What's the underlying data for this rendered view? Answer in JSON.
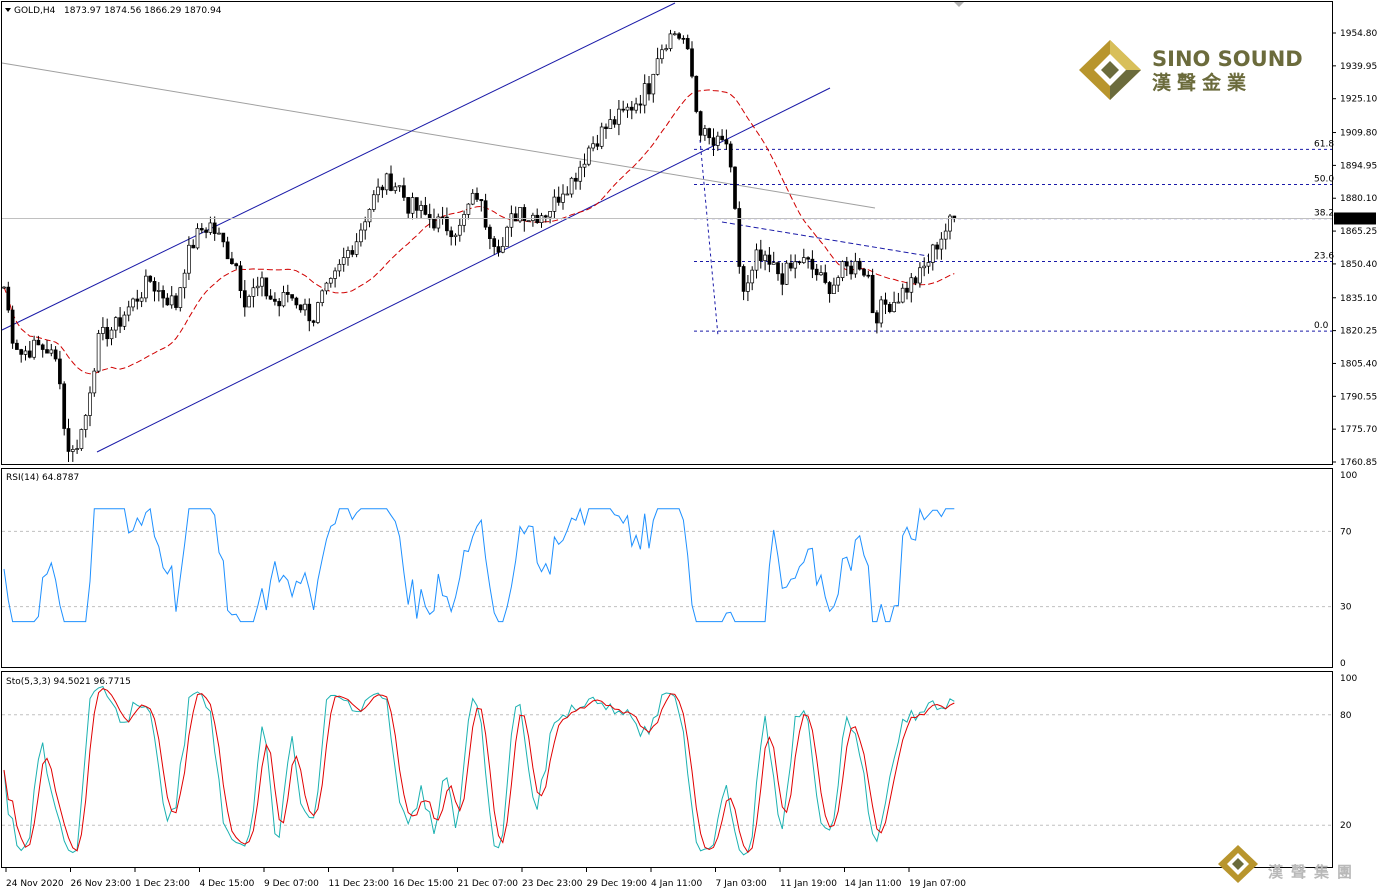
{
  "chart_data": {
    "type": "candlestick",
    "symbol": "GOLD,H4",
    "ohlc_readout": "1873.97 1874.56 1866.29 1870.94",
    "price_axis": {
      "ticks": [
        1954.8,
        1939.95,
        1925.1,
        1909.8,
        1894.95,
        1880.1,
        1865.25,
        1850.4,
        1835.1,
        1820.25,
        1805.4,
        1790.55,
        1775.7,
        1760.85
      ],
      "tick_labels": [
        "1954.80",
        "1939.95",
        "1925.10",
        "1909.80",
        "1894.95",
        "1880.10",
        "1865.25",
        "1850.40",
        "1835.10",
        "1820.25",
        "1805.40",
        "1790.55",
        "1775.70",
        "1760.85"
      ],
      "range": [
        1760.0,
        1962.0
      ]
    },
    "current_price": {
      "value": 1870.94,
      "label": "1870.94"
    },
    "time_labels": [
      "24 Nov 2020",
      "26 Nov 23:00",
      "1 Dec 23:00",
      "4 Dec 15:00",
      "9 Dec 07:00",
      "11 Dec 23:00",
      "16 Dec 15:00",
      "21 Dec 07:00",
      "23 Dec 23:00",
      "29 Dec 19:00",
      "4 Jan 11:00",
      "7 Jan 03:00",
      "11 Jan 19:00",
      "14 Jan 11:00",
      "19 Jan 07:00"
    ],
    "fibonacci": [
      {
        "label": "61.8",
        "price": 1902.2
      },
      {
        "label": "50.0",
        "price": 1886.3
      },
      {
        "label": "38.2",
        "price": 1870.9
      },
      {
        "label": "23.6",
        "price": 1851.5
      },
      {
        "label": "0.0",
        "price": 1820.0
      }
    ],
    "bar_count": 236,
    "key_points": [
      [
        0,
        1840
      ],
      [
        4,
        1818
      ],
      [
        8,
        1810
      ],
      [
        12,
        1812
      ],
      [
        16,
        1813
      ],
      [
        20,
        1812
      ],
      [
        24,
        1806
      ],
      [
        26,
        1800
      ],
      [
        28,
        1776
      ],
      [
        30,
        1768
      ],
      [
        32,
        1765
      ],
      [
        34,
        1770
      ],
      [
        36,
        1775
      ],
      [
        38,
        1782
      ],
      [
        40,
        1795
      ],
      [
        42,
        1806
      ],
      [
        44,
        1815
      ],
      [
        48,
        1820
      ],
      [
        52,
        1822
      ],
      [
        56,
        1828
      ],
      [
        60,
        1833
      ],
      [
        64,
        1838
      ],
      [
        68,
        1843
      ],
      [
        72,
        1838
      ],
      [
        76,
        1835
      ],
      [
        80,
        1832
      ],
      [
        84,
        1850
      ],
      [
        88,
        1860
      ],
      [
        92,
        1866
      ],
      [
        96,
        1868
      ],
      [
        100,
        1862
      ],
      [
        104,
        1856
      ],
      [
        108,
        1850
      ],
      [
        110,
        1842
      ],
      [
        112,
        1835
      ],
      [
        116,
        1838
      ],
      [
        120,
        1840
      ],
      [
        124,
        1835
      ],
      [
        128,
        1832
      ],
      [
        132,
        1837
      ],
      [
        136,
        1834
      ],
      [
        140,
        1830
      ],
      [
        144,
        1826
      ],
      [
        148,
        1835
      ],
      [
        152,
        1840
      ],
      [
        156,
        1848
      ],
      [
        160,
        1856
      ],
      [
        164,
        1862
      ],
      [
        168,
        1872
      ],
      [
        172,
        1880
      ],
      [
        176,
        1886
      ],
      [
        180,
        1888
      ],
      [
        184,
        1885
      ],
      [
        188,
        1877
      ],
      [
        192,
        1875
      ],
      [
        196,
        1872
      ],
      [
        200,
        1870
      ],
      [
        204,
        1868
      ],
      [
        208,
        1867
      ],
      [
        212,
        1866
      ],
      [
        216,
        1876
      ],
      [
        220,
        1882
      ],
      [
        224,
        1870
      ],
      [
        228,
        1862
      ],
      [
        232,
        1858
      ],
      [
        236,
        1870
      ],
      [
        240,
        1876
      ],
      [
        244,
        1872
      ],
      [
        248,
        1873
      ],
      [
        252,
        1874
      ],
      [
        256,
        1878
      ],
      [
        260,
        1885
      ],
      [
        264,
        1888
      ],
      [
        268,
        1895
      ],
      [
        272,
        1903
      ],
      [
        276,
        1908
      ],
      [
        280,
        1912
      ],
      [
        284,
        1915
      ],
      [
        288,
        1918
      ],
      [
        292,
        1922
      ],
      [
        296,
        1926
      ],
      [
        300,
        1931
      ],
      [
        302,
        1940
      ],
      [
        304,
        1946
      ],
      [
        308,
        1952
      ],
      [
        312,
        1955
      ],
      [
        316,
        1952
      ],
      [
        318,
        1944
      ],
      [
        320,
        1935
      ],
      [
        322,
        1920
      ],
      [
        324,
        1912
      ],
      [
        326,
        1908
      ],
      [
        328,
        1906
      ],
      [
        330,
        1904
      ],
      [
        334,
        1905
      ],
      [
        336,
        1905
      ],
      [
        338,
        1890
      ],
      [
        340,
        1872
      ],
      [
        342,
        1850
      ],
      [
        344,
        1838
      ],
      [
        346,
        1840
      ],
      [
        348,
        1845
      ],
      [
        350,
        1853
      ],
      [
        354,
        1850
      ],
      [
        358,
        1848
      ],
      [
        362,
        1845
      ],
      [
        366,
        1848
      ],
      [
        370,
        1852
      ],
      [
        374,
        1850
      ],
      [
        378,
        1846
      ],
      [
        382,
        1840
      ],
      [
        386,
        1842
      ],
      [
        390,
        1847
      ],
      [
        394,
        1849
      ],
      [
        398,
        1851
      ],
      [
        402,
        1845
      ],
      [
        404,
        1830
      ],
      [
        406,
        1828
      ],
      [
        410,
        1832
      ],
      [
        414,
        1834
      ],
      [
        418,
        1838
      ],
      [
        422,
        1842
      ],
      [
        426,
        1845
      ],
      [
        430,
        1852
      ],
      [
        434,
        1860
      ],
      [
        438,
        1866
      ],
      [
        442,
        1871
      ]
    ]
  },
  "rsi_panel": {
    "label": "RSI(14) 64.8787",
    "levels": {
      "upper": 70,
      "lower": 30
    },
    "axis_labels": [
      "100",
      "70",
      "30",
      "0"
    ],
    "color": "#1e90ff"
  },
  "stoch_panel": {
    "label": "Sto(5,3,3) 94.5021 96.7715",
    "levels": {
      "upper": 80,
      "lower": 20
    },
    "axis_labels": [
      "100",
      "80",
      "20"
    ],
    "main_color": "#1bb1b1",
    "signal_color": "#e00000"
  },
  "logo": {
    "brand_en": "SINO SOUND",
    "brand_cn": "漢聲金業",
    "watermark_cn": "漢聲集團",
    "gold": "#b8952d",
    "olive": "#6b6b3c"
  }
}
